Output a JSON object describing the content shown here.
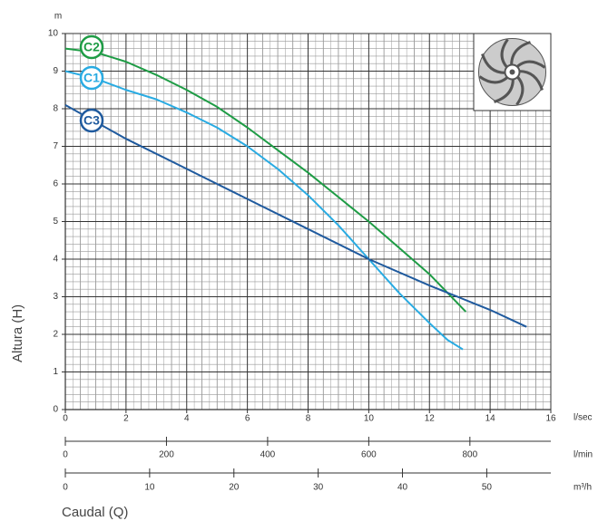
{
  "chart_data": {
    "type": "line",
    "y_unit": "m",
    "y_label": "Altura (H)",
    "x_label": "Caudal (Q)",
    "x_unit": "l/sec",
    "xlim": [
      0,
      16
    ],
    "xticks": [
      0,
      2,
      4,
      6,
      8,
      10,
      12,
      14,
      16
    ],
    "ylim": [
      0,
      10
    ],
    "yticks": [
      0,
      1,
      2,
      3,
      4,
      5,
      6,
      7,
      8,
      9,
      10
    ],
    "grid": true,
    "x2": {
      "unit": "l/min",
      "lim": [
        0,
        960
      ],
      "ticks": [
        0,
        200,
        400,
        600,
        800
      ]
    },
    "x3": {
      "unit": "m³/h",
      "lim": [
        0,
        57.6
      ],
      "ticks": [
        0,
        10,
        20,
        30,
        40,
        50
      ]
    },
    "series": [
      {
        "name": "C2",
        "color": "#1e9c45",
        "x": [
          0,
          1,
          2,
          3,
          4,
          5,
          6,
          7,
          8,
          9,
          10,
          11,
          12,
          13.2
        ],
        "values": [
          9.6,
          9.5,
          9.25,
          8.9,
          8.5,
          8.05,
          7.5,
          6.9,
          6.3,
          5.65,
          5.0,
          4.3,
          3.6,
          2.6
        ]
      },
      {
        "name": "C1",
        "color": "#29abe2",
        "x": [
          0,
          1,
          2,
          3,
          4,
          5,
          6,
          7,
          8,
          9,
          10,
          11,
          12,
          12.6,
          13.1
        ],
        "values": [
          9.0,
          8.8,
          8.5,
          8.25,
          7.9,
          7.5,
          7.0,
          6.4,
          5.7,
          4.9,
          4.0,
          3.1,
          2.3,
          1.85,
          1.6
        ]
      },
      {
        "name": "C3",
        "color": "#1f5a9e",
        "x": [
          0,
          2,
          4,
          6,
          8,
          10,
          12,
          14,
          15.2
        ],
        "values": [
          8.1,
          7.2,
          6.4,
          5.6,
          4.8,
          4.0,
          3.3,
          2.65,
          2.2
        ]
      }
    ]
  }
}
